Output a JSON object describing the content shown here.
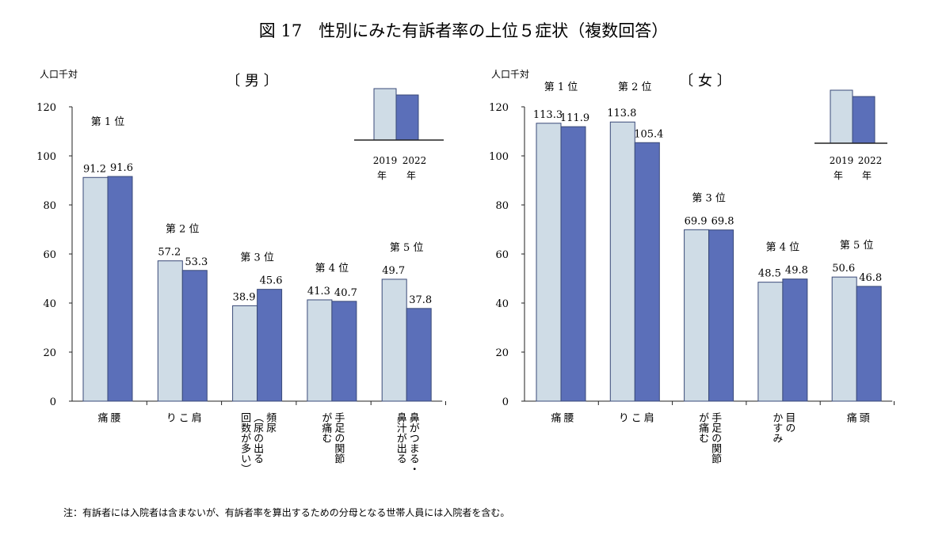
{
  "title": "図 17　性別にみた有訴者率の上位５症状（複数回答）",
  "note": "注：有訴者には入院者は含まないが、有訴者率を算出するための分母となる世帯人員には入院者を含む。",
  "legend": {
    "labels": [
      "2019 年",
      "2022 年"
    ],
    "colors": [
      "#cfdce6",
      "#5b6fb9"
    ]
  },
  "chart_data": [
    {
      "type": "bar",
      "panel": "〔 男 〕",
      "ylabel": "人口千対",
      "ylim": [
        0,
        120
      ],
      "yticks": [
        0,
        20,
        40,
        60,
        80,
        100,
        120
      ],
      "categories": [
        "腰痛",
        "肩こり",
        "頻尿（尿の出る回数が多い）",
        "手足の関節が痛む",
        "鼻がつまる・鼻汁が出る"
      ],
      "category_lines": [
        [
          "腰",
          "痛"
        ],
        [
          "肩",
          "こ",
          "り"
        ],
        [
          "頻尿",
          "（尿の出る",
          "回数が多い）"
        ],
        [
          "手足の関節",
          "が痛む"
        ],
        [
          "鼻がつまる・",
          "鼻汁が出る"
        ]
      ],
      "ranks": [
        "第 1 位",
        "第 2 位",
        "第 3 位",
        "第 4 位",
        "第 5 位"
      ],
      "series": [
        {
          "name": "2019 年",
          "values": [
            91.2,
            57.2,
            38.9,
            41.3,
            49.7
          ]
        },
        {
          "name": "2022 年",
          "values": [
            91.6,
            53.3,
            45.6,
            40.7,
            37.8
          ]
        }
      ]
    },
    {
      "type": "bar",
      "panel": "〔 女 〕",
      "ylabel": "人口千対",
      "ylim": [
        0,
        120
      ],
      "yticks": [
        0,
        20,
        40,
        60,
        80,
        100,
        120
      ],
      "categories": [
        "腰痛",
        "肩こり",
        "手足の関節が痛む",
        "目のかすみ",
        "頭痛"
      ],
      "category_lines": [
        [
          "腰",
          "痛"
        ],
        [
          "肩",
          "こ",
          "り"
        ],
        [
          "手足の関節",
          "が痛む"
        ],
        [
          "目の",
          "かすみ"
        ],
        [
          "頭",
          "痛"
        ]
      ],
      "ranks": [
        "第 1 位",
        "第 2 位",
        "第 3 位",
        "第 4 位",
        "第 5 位"
      ],
      "series": [
        {
          "name": "2019 年",
          "values": [
            113.3,
            113.8,
            69.9,
            48.5,
            50.6
          ]
        },
        {
          "name": "2022 年",
          "values": [
            111.9,
            105.4,
            69.8,
            49.8,
            46.8
          ]
        }
      ]
    }
  ]
}
